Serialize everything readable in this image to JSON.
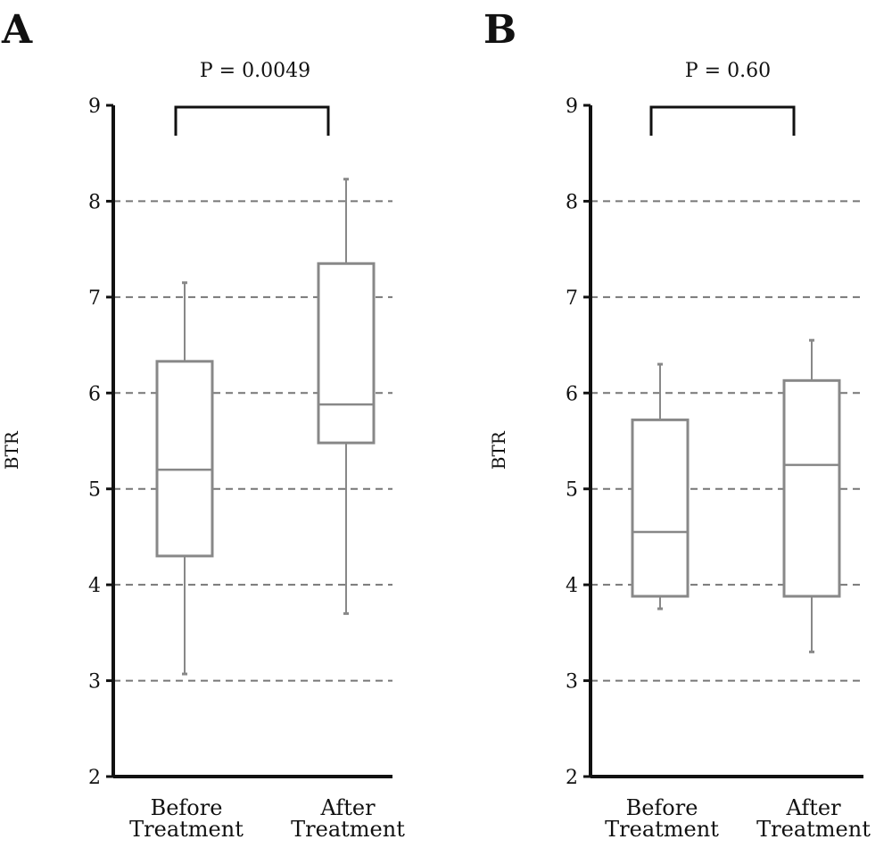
{
  "chart_data": [
    {
      "type": "box",
      "panel": "A",
      "annotation": "P = 0.0049",
      "ylabel": "BTR",
      "ylim": [
        2,
        9
      ],
      "yticks": [
        "2",
        "3",
        "4",
        "5",
        "6",
        "7",
        "8",
        "9"
      ],
      "grid": "horizontal-dashed",
      "categories": [
        {
          "line1": "Before",
          "line2": "Treatment"
        },
        {
          "line1": "After",
          "line2": "Treatment"
        }
      ],
      "boxes": [
        {
          "min": 3.07,
          "q1": 4.3,
          "median": 5.2,
          "q3": 6.33,
          "max": 7.15
        },
        {
          "min": 3.7,
          "q1": 5.48,
          "median": 5.88,
          "q3": 7.35,
          "max": 8.23
        }
      ]
    },
    {
      "type": "box",
      "panel": "B",
      "annotation": "P = 0.60",
      "ylabel": "BTR",
      "ylim": [
        2,
        9
      ],
      "yticks": [
        "2",
        "3",
        "4",
        "5",
        "6",
        "7",
        "8",
        "9"
      ],
      "grid": "horizontal-dashed",
      "categories": [
        {
          "line1": "Before",
          "line2": "Treatment"
        },
        {
          "line1": "After",
          "line2": "Treatment"
        }
      ],
      "boxes": [
        {
          "min": 3.75,
          "q1": 3.88,
          "median": 4.55,
          "q3": 5.72,
          "max": 6.3
        },
        {
          "min": 3.3,
          "q1": 3.88,
          "median": 5.25,
          "q3": 6.13,
          "max": 6.55
        }
      ]
    }
  ]
}
